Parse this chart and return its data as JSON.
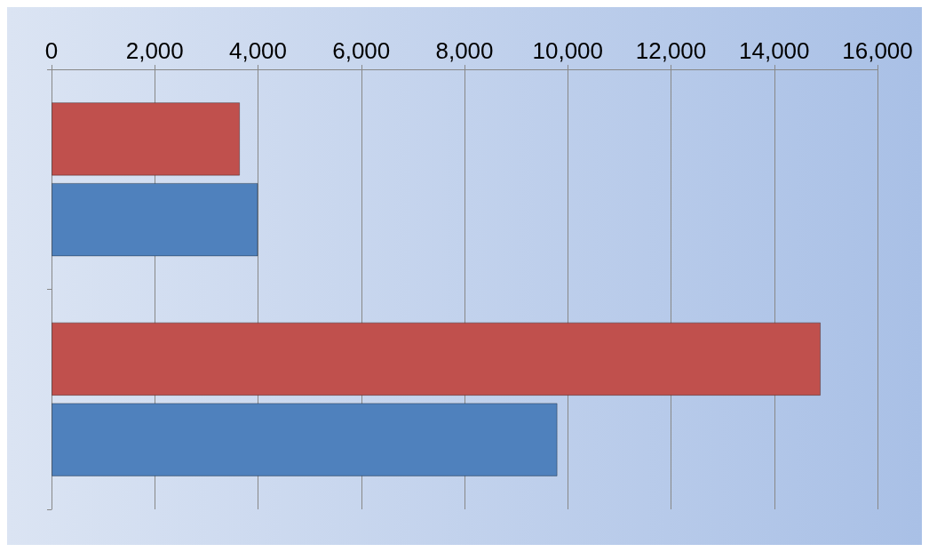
{
  "chart_data": {
    "type": "bar",
    "orientation": "horizontal",
    "categories": [
      null,
      null
    ],
    "series": [
      {
        "color": "#c0504d",
        "values": [
          3650,
          14900
        ]
      },
      {
        "color": "#4f81bd",
        "values": [
          4000,
          9800
        ]
      }
    ],
    "xlim": [
      0,
      16000
    ],
    "xticks": [
      0,
      {
        "value": 2000,
        "label": "2,000"
      },
      {
        "value": 4000,
        "label": "4,000"
      },
      {
        "value": 6000,
        "label": "6,000"
      },
      {
        "value": 8000,
        "label": "8,000"
      },
      {
        "value": 10000,
        "label": "10,000"
      },
      {
        "value": 12000,
        "label": "12,000"
      },
      {
        "value": 14000,
        "label": "14,000"
      },
      {
        "value": 16000,
        "label": "16,000"
      }
    ],
    "grid": "x",
    "tick_labels": "x"
  }
}
